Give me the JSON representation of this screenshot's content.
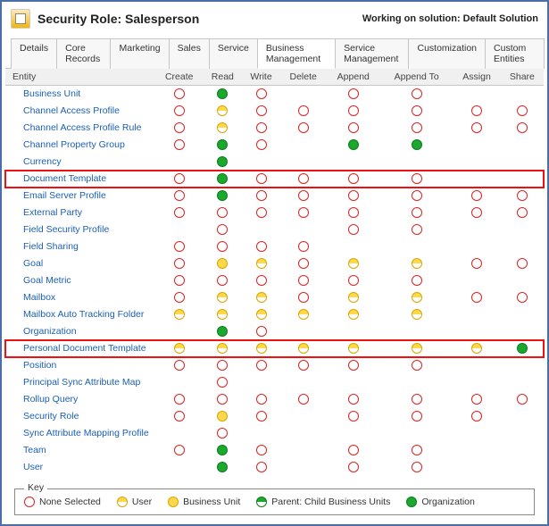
{
  "header": {
    "title": "Security Role: Salesperson",
    "solution": "Working on solution: Default Solution"
  },
  "tabs": [
    {
      "label": "Details",
      "active": false
    },
    {
      "label": "Core Records",
      "active": false
    },
    {
      "label": "Marketing",
      "active": false
    },
    {
      "label": "Sales",
      "active": false
    },
    {
      "label": "Service",
      "active": false
    },
    {
      "label": "Business Management",
      "active": true
    },
    {
      "label": "Service Management",
      "active": false
    },
    {
      "label": "Customization",
      "active": false
    },
    {
      "label": "Custom Entities",
      "active": false
    }
  ],
  "columns": [
    "Entity",
    "Create",
    "Read",
    "Write",
    "Delete",
    "Append",
    "Append To",
    "Assign",
    "Share"
  ],
  "levels": {
    "none": "None Selected",
    "user": "User",
    "bu": "Business Unit",
    "parent": "Parent: Child Business Units",
    "org": "Organization"
  },
  "rows": [
    {
      "entity": "Business Unit",
      "priv": [
        "none",
        "org",
        "none",
        "",
        "none",
        "none",
        "",
        ""
      ]
    },
    {
      "entity": "Channel Access Profile",
      "priv": [
        "none",
        "user",
        "none",
        "none",
        "none",
        "none",
        "none",
        "none"
      ]
    },
    {
      "entity": "Channel Access Profile Rule",
      "priv": [
        "none",
        "user",
        "none",
        "none",
        "none",
        "none",
        "none",
        "none"
      ]
    },
    {
      "entity": "Channel Property Group",
      "priv": [
        "none",
        "org",
        "none",
        "",
        "org",
        "org",
        "",
        ""
      ]
    },
    {
      "entity": "Currency",
      "priv": [
        "",
        "org",
        "",
        "",
        "",
        "",
        "",
        ""
      ]
    },
    {
      "entity": "Document Template",
      "priv": [
        "none",
        "org",
        "none",
        "none",
        "none",
        "none",
        "",
        ""
      ],
      "highlight": true
    },
    {
      "entity": "Email Server Profile",
      "priv": [
        "none",
        "org",
        "none",
        "none",
        "none",
        "none",
        "none",
        "none"
      ]
    },
    {
      "entity": "External Party",
      "priv": [
        "none",
        "none",
        "none",
        "none",
        "none",
        "none",
        "none",
        "none"
      ]
    },
    {
      "entity": "Field Security Profile",
      "priv": [
        "",
        "none",
        "",
        "",
        "none",
        "none",
        "",
        ""
      ]
    },
    {
      "entity": "Field Sharing",
      "priv": [
        "none",
        "none",
        "none",
        "none",
        "",
        "",
        "",
        ""
      ]
    },
    {
      "entity": "Goal",
      "priv": [
        "none",
        "bu",
        "user",
        "none",
        "user",
        "user",
        "none",
        "none"
      ]
    },
    {
      "entity": "Goal Metric",
      "priv": [
        "none",
        "none",
        "none",
        "none",
        "none",
        "none",
        "",
        ""
      ]
    },
    {
      "entity": "Mailbox",
      "priv": [
        "none",
        "user",
        "user",
        "none",
        "user",
        "user",
        "none",
        "none"
      ]
    },
    {
      "entity": "Mailbox Auto Tracking Folder",
      "priv": [
        "user",
        "user",
        "user",
        "user",
        "user",
        "user",
        "",
        ""
      ]
    },
    {
      "entity": "Organization",
      "priv": [
        "",
        "org",
        "none",
        "",
        "",
        "",
        "",
        ""
      ]
    },
    {
      "entity": "Personal Document Template",
      "priv": [
        "user",
        "user",
        "user",
        "user",
        "user",
        "user",
        "user",
        "org"
      ],
      "highlight": true
    },
    {
      "entity": "Position",
      "priv": [
        "none",
        "none",
        "none",
        "none",
        "none",
        "none",
        "",
        ""
      ]
    },
    {
      "entity": "Principal Sync Attribute Map",
      "priv": [
        "",
        "none",
        "",
        "",
        "",
        "",
        "",
        ""
      ]
    },
    {
      "entity": "Rollup Query",
      "priv": [
        "none",
        "none",
        "none",
        "none",
        "none",
        "none",
        "none",
        "none"
      ]
    },
    {
      "entity": "Security Role",
      "priv": [
        "none",
        "bu",
        "none",
        "",
        "none",
        "none",
        "none",
        ""
      ]
    },
    {
      "entity": "Sync Attribute Mapping Profile",
      "priv": [
        "",
        "none",
        "",
        "",
        "",
        "",
        "",
        ""
      ]
    },
    {
      "entity": "Team",
      "priv": [
        "none",
        "org",
        "none",
        "",
        "none",
        "none",
        "",
        ""
      ]
    },
    {
      "entity": "User",
      "priv": [
        "",
        "org",
        "none",
        "",
        "none",
        "none",
        "",
        ""
      ]
    }
  ],
  "key": {
    "label": "Key",
    "items": [
      {
        "lvl": "none",
        "text": "None Selected"
      },
      {
        "lvl": "user",
        "text": "User"
      },
      {
        "lvl": "bu",
        "text": "Business Unit"
      },
      {
        "lvl": "parent",
        "text": "Parent: Child Business Units"
      },
      {
        "lvl": "org",
        "text": "Organization"
      }
    ]
  }
}
